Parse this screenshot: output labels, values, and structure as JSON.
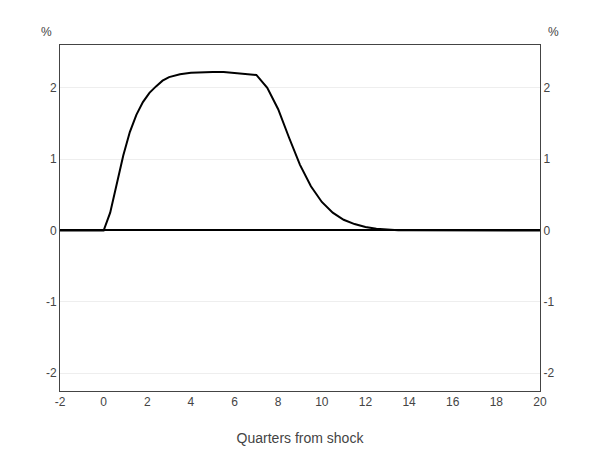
{
  "chart_data": {
    "type": "line",
    "xlabel": "Quarters from shock",
    "ylabel": "%",
    "y2label": "%",
    "x": [
      -2,
      -1,
      -0.01,
      0,
      0.3,
      0.6,
      0.9,
      1.2,
      1.5,
      1.8,
      2.1,
      2.4,
      2.7,
      3.0,
      3.5,
      4.0,
      4.5,
      5.0,
      5.5,
      6.0,
      6.5,
      7.0,
      7.5,
      8.0,
      8.5,
      9.0,
      9.5,
      10.0,
      10.5,
      11.0,
      11.5,
      12.0,
      12.5,
      13.0,
      13.5,
      14.0,
      15.0,
      16.0,
      17.0,
      18.0,
      19.0,
      20.0
    ],
    "values": [
      0.0,
      0.0,
      0.0,
      0.0,
      0.25,
      0.65,
      1.05,
      1.38,
      1.62,
      1.8,
      1.93,
      2.02,
      2.1,
      2.15,
      2.19,
      2.21,
      2.22,
      2.22,
      2.22,
      2.21,
      2.2,
      2.18,
      2.0,
      1.7,
      1.3,
      0.92,
      0.62,
      0.4,
      0.25,
      0.15,
      0.09,
      0.05,
      0.025,
      0.012,
      0.005,
      0.002,
      0.0,
      0.0,
      0.0,
      0.0,
      0.0,
      0.0
    ],
    "color": "#000000",
    "xlim": [
      -2,
      20
    ],
    "xticks": [
      -2,
      0,
      2,
      4,
      6,
      8,
      10,
      12,
      14,
      16,
      18,
      20
    ],
    "ylim": [
      -2.25,
      2.6
    ],
    "yticks": [
      -2,
      -1,
      0,
      1,
      2
    ],
    "y2lim": [
      -2.25,
      2.6
    ],
    "y2ticks": [
      -2,
      -1,
      0,
      1,
      2
    ],
    "grid": true
  }
}
